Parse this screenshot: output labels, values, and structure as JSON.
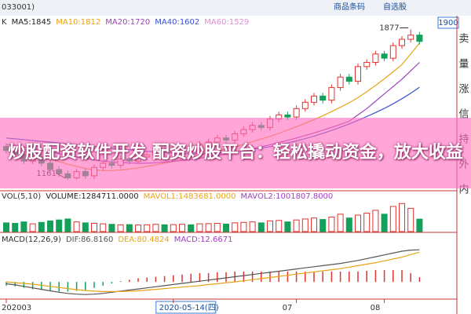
{
  "header": {
    "title_fragment": "033001)",
    "buttons": [
      "商品条码",
      "自选股"
    ],
    "price_box": "1900"
  },
  "sidebar": [
    "卖",
    "量",
    "涨",
    "信",
    "持",
    "外",
    "内"
  ],
  "overlay_text": "炒股配资软件开发 配资炒股平台：轻松撬动资金，放大收益",
  "chart_data": [
    {
      "type": "candlestick",
      "label": "K",
      "categories": [
        "202003",
        null,
        null,
        null,
        null,
        null,
        null,
        null,
        null,
        null,
        null,
        null,
        null,
        null,
        null,
        null,
        null,
        null,
        null,
        "2020-05-14(四)",
        null,
        null,
        null,
        null,
        null,
        null,
        null,
        null,
        null,
        null,
        null,
        null,
        null,
        "07",
        null,
        null,
        null,
        null,
        null,
        null,
        null,
        null,
        null,
        "08",
        null,
        null,
        null,
        null
      ],
      "open": [
        1320,
        1300,
        1280,
        1250,
        1270,
        1240,
        1210,
        1190,
        1170,
        1200,
        1180,
        1220,
        1240,
        1230,
        1260,
        1250,
        1270,
        1280,
        1300,
        1290,
        1310,
        1320,
        1300,
        1330,
        1340,
        1360,
        1350,
        1380,
        1400,
        1420,
        1410,
        1450,
        1470,
        1460,
        1500,
        1530,
        1560,
        1540,
        1600,
        1650,
        1630,
        1700,
        1720,
        1760,
        1740,
        1800,
        1830,
        1850
      ],
      "high": [
        1335,
        1315,
        1295,
        1285,
        1285,
        1255,
        1225,
        1205,
        1215,
        1215,
        1235,
        1255,
        1255,
        1275,
        1275,
        1285,
        1295,
        1315,
        1315,
        1325,
        1335,
        1335,
        1345,
        1355,
        1375,
        1375,
        1395,
        1415,
        1435,
        1435,
        1465,
        1485,
        1485,
        1515,
        1545,
        1575,
        1575,
        1615,
        1665,
        1665,
        1715,
        1735,
        1775,
        1775,
        1815,
        1845,
        1877,
        1865
      ],
      "low": [
        1285,
        1265,
        1235,
        1235,
        1225,
        1195,
        1175,
        1161,
        1162,
        1165,
        1165,
        1205,
        1215,
        1215,
        1235,
        1235,
        1255,
        1265,
        1275,
        1275,
        1295,
        1285,
        1285,
        1315,
        1325,
        1335,
        1335,
        1365,
        1385,
        1395,
        1395,
        1435,
        1445,
        1445,
        1485,
        1515,
        1525,
        1525,
        1585,
        1615,
        1615,
        1685,
        1705,
        1725,
        1725,
        1785,
        1815,
        1805
      ],
      "close": [
        1300,
        1280,
        1250,
        1270,
        1240,
        1210,
        1190,
        1170,
        1200,
        1180,
        1220,
        1240,
        1230,
        1260,
        1250,
        1270,
        1280,
        1300,
        1290,
        1310,
        1320,
        1300,
        1330,
        1340,
        1360,
        1350,
        1380,
        1400,
        1420,
        1410,
        1450,
        1470,
        1460,
        1500,
        1530,
        1560,
        1540,
        1600,
        1650,
        1630,
        1700,
        1720,
        1760,
        1740,
        1800,
        1830,
        1850,
        1820
      ],
      "series": [
        {
          "name": "MA10:1812",
          "color": "#e8a317",
          "values": [
            1300,
            1295,
            1285,
            1278,
            1270,
            1260,
            1248,
            1235,
            1225,
            1215,
            1208,
            1205,
            1205,
            1208,
            1212,
            1218,
            1225,
            1232,
            1240,
            1248,
            1258,
            1268,
            1278,
            1288,
            1298,
            1308,
            1318,
            1330,
            1342,
            1355,
            1368,
            1382,
            1398,
            1414,
            1430,
            1448,
            1466,
            1486,
            1506,
            1528,
            1552,
            1580,
            1610,
            1642,
            1675,
            1710,
            1760,
            1812
          ]
        },
        {
          "name": "MA20:1720",
          "color": "#a040c0",
          "values": [
            1330,
            1325,
            1318,
            1310,
            1302,
            1294,
            1286,
            1278,
            1270,
            1262,
            1256,
            1250,
            1246,
            1243,
            1241,
            1240,
            1240,
            1242,
            1245,
            1249,
            1253,
            1258,
            1264,
            1270,
            1277,
            1284,
            1292,
            1300,
            1309,
            1318,
            1328,
            1338,
            1349,
            1360,
            1372,
            1384,
            1397,
            1411,
            1425,
            1440,
            1470,
            1500,
            1535,
            1570,
            1605,
            1640,
            1680,
            1720
          ]
        },
        {
          "name": "MA40:1602",
          "color": "#3a4fd0",
          "values": [
            1360,
            1356,
            1352,
            1348,
            1344,
            1340,
            1336,
            1332,
            1328,
            1324,
            1320,
            1316,
            1312,
            1308,
            1304,
            1300,
            1297,
            1294,
            1291,
            1288,
            1286,
            1285,
            1285,
            1286,
            1288,
            1291,
            1295,
            1300,
            1306,
            1312,
            1319,
            1327,
            1336,
            1346,
            1357,
            1369,
            1382,
            1396,
            1411,
            1427,
            1444,
            1462,
            1481,
            1501,
            1523,
            1547,
            1573,
            1602
          ]
        }
      ],
      "extra_legend": [
        {
          "text": "MA5:1845",
          "color": "#222222"
        },
        {
          "text": "MA60:1529",
          "color": "#e58ad8"
        }
      ],
      "annotations": [
        "1877",
        "1161"
      ],
      "up_color": "#e0342e",
      "down_color": "#12a05a",
      "ylim": [
        1120,
        1905
      ]
    },
    {
      "type": "bar",
      "label": "VOL(5,10)",
      "legend": [
        {
          "text": "VOLUME:1284711.0000",
          "color": "#222222"
        },
        {
          "text": "MAVOL1:1483681.0000",
          "color": "#e8a317"
        },
        {
          "text": "MAVOL2:1001807.8000",
          "color": "#a040c0"
        }
      ],
      "values": [
        900000,
        850000,
        1000000,
        800000,
        950000,
        1100000,
        1200000,
        1300000,
        1000000,
        900000,
        850000,
        800000,
        750000,
        700000,
        720000,
        680000,
        700000,
        750000,
        700000,
        720000,
        760000,
        700000,
        800000,
        820000,
        850000,
        780000,
        900000,
        950000,
        1000000,
        900000,
        1100000,
        1150000,
        1000000,
        1200000,
        1300000,
        1400000,
        1250000,
        1500000,
        1800000,
        1400000,
        1700000,
        1900000,
        2200000,
        1800000,
        2600000,
        2900000,
        2400000,
        1284711
      ],
      "ylim": [
        0,
        3000000
      ]
    },
    {
      "type": "macd",
      "label": "MACD(12,26,9)",
      "series": [
        {
          "name": "DIF:86.8160",
          "color": "#555555",
          "values": [
            -5,
            -8,
            -12,
            -16,
            -20,
            -24,
            -28,
            -31,
            -33,
            -34,
            -33,
            -31,
            -28,
            -25,
            -22,
            -19,
            -16,
            -13,
            -10,
            -7,
            -4,
            -1,
            2,
            5,
            8,
            11,
            14,
            17,
            20,
            23,
            26,
            29,
            32,
            35,
            38,
            41,
            44,
            47,
            50,
            54,
            58,
            63,
            68,
            73,
            78,
            83,
            86,
            86.816
          ]
        },
        {
          "name": "DEA:80.4824",
          "color": "#e8a317",
          "values": [
            0,
            -2,
            -4,
            -6,
            -9,
            -12,
            -15,
            -18,
            -21,
            -23,
            -25,
            -26,
            -26,
            -26,
            -25,
            -24,
            -22,
            -20,
            -18,
            -16,
            -14,
            -12,
            -10,
            -7,
            -5,
            -2,
            0,
            3,
            6,
            9,
            12,
            15,
            18,
            21,
            24,
            27,
            30,
            33,
            36,
            40,
            44,
            48,
            52,
            57,
            62,
            67,
            74,
            80.4824
          ]
        }
      ],
      "histogram_label": "MACD:12.6671",
      "values": [
        -10,
        -12,
        -16,
        -20,
        -22,
        -24,
        -26,
        -26,
        -24,
        -22,
        -16,
        -10,
        -4,
        2,
        6,
        10,
        12,
        14,
        16,
        18,
        20,
        22,
        24,
        24,
        26,
        26,
        28,
        28,
        28,
        28,
        28,
        28,
        28,
        28,
        28,
        28,
        28,
        28,
        28,
        28,
        28,
        30,
        32,
        32,
        32,
        32,
        24,
        12.6671
      ],
      "ylim": [
        -40,
        100
      ]
    }
  ]
}
